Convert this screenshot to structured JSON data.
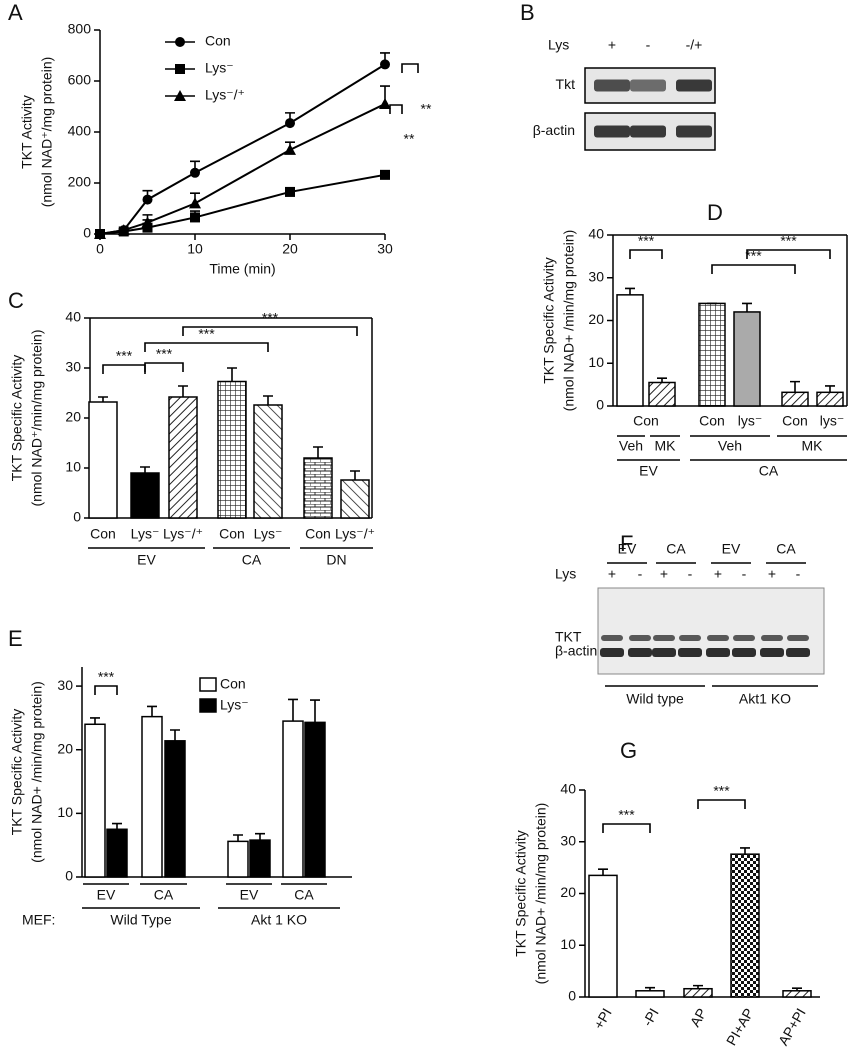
{
  "chart_data": [
    {
      "panel": "A",
      "type": "line",
      "y_label": [
        "TKT Activity",
        "(nmol NAD⁺/mg protein)"
      ],
      "x_label": "Time (min)",
      "x": [
        0,
        2.5,
        5,
        10,
        20,
        30
      ],
      "xlim": [
        0,
        30
      ],
      "xticks": [
        0,
        10,
        20,
        30
      ],
      "ylim": [
        0,
        800
      ],
      "yticks": [
        0,
        200,
        400,
        600,
        800
      ],
      "series": [
        {
          "name": "Con",
          "color": "#000",
          "marker": "circle",
          "values": [
            0,
            15,
            135,
            240,
            435,
            665
          ],
          "errors": [
            0,
            5,
            35,
            45,
            40,
            45
          ]
        },
        {
          "name": "Lys⁻",
          "color": "#000",
          "marker": "square",
          "values": [
            0,
            10,
            25,
            65,
            165,
            232
          ],
          "errors": [
            0,
            5,
            30,
            25,
            10,
            10
          ]
        },
        {
          "name": "Lys⁻/⁺",
          "color": "#000",
          "marker": "triangle",
          "values": [
            0,
            15,
            45,
            120,
            330,
            510
          ],
          "errors": [
            0,
            5,
            30,
            40,
            30,
            70
          ]
        }
      ],
      "annotations": [
        "**",
        "**"
      ]
    },
    {
      "panel": "C",
      "type": "bar",
      "frame": true,
      "y_label": [
        "TKT Specific Activity",
        "(nmol NAD⁺/min/mg protein)"
      ],
      "categories": [
        "Con",
        "Lys⁻",
        "Lys⁻/⁺",
        "Con",
        "Lys⁻",
        "Con",
        "Lys⁻/⁺"
      ],
      "values": [
        23.2,
        9,
        24.2,
        27.3,
        22.6,
        12,
        7.6
      ],
      "errors": [
        1,
        1.2,
        2.2,
        2.7,
        1.8,
        2.2,
        1.8
      ],
      "colors": [
        "white",
        "black",
        "hatch",
        "grid",
        "backhatch",
        "brick",
        "backhatch"
      ],
      "groups": [
        "EV",
        "CA",
        "DN"
      ],
      "ylim": [
        0,
        40
      ],
      "yticks": [
        0,
        10,
        20,
        30,
        40
      ],
      "annotations": [
        "***",
        "***",
        "***",
        "***"
      ]
    },
    {
      "panel": "D",
      "type": "bar",
      "frame": true,
      "y_label": [
        "TKT Specific Activity",
        "(nmol NAD+ /min/mg protein)"
      ],
      "values": [
        26,
        5.5,
        24,
        22,
        3.2,
        3.2
      ],
      "errors": [
        1.5,
        1,
        0,
        2,
        2.5,
        1.5
      ],
      "colors": [
        "white",
        "hatch",
        "grid",
        "gray",
        "hatch",
        "hatch"
      ],
      "label_rows": [
        [
          "Con",
          "Con",
          "lys⁻",
          "Con",
          "lys⁻"
        ],
        [
          "Veh",
          "MK",
          "Veh",
          "MK"
        ],
        [
          "EV",
          "CA"
        ]
      ],
      "ylim": [
        0,
        40
      ],
      "yticks": [
        0,
        10,
        20,
        30,
        40
      ],
      "annotations": [
        "***",
        "***",
        "***"
      ]
    },
    {
      "panel": "E",
      "type": "grouped_bar",
      "y_label": [
        "TKT Specific Activity",
        "(nmol NAD+ /min/mg protein)"
      ],
      "categories": [
        "EV",
        "CA",
        "EV",
        "CA"
      ],
      "groups": [
        "Wild Type",
        "Akt 1 KO"
      ],
      "group_prefix": "MEF:",
      "series": [
        {
          "name": "Con",
          "color": "white",
          "values": [
            24,
            25.2,
            5.6,
            24.5
          ],
          "errors": [
            1,
            1.6,
            1,
            3.4
          ]
        },
        {
          "name": "Lys⁻",
          "color": "black",
          "values": [
            7.5,
            21.4,
            5.8,
            24.3
          ],
          "errors": [
            0.9,
            1.7,
            1,
            3.5
          ]
        }
      ],
      "ylim": [
        0,
        33
      ],
      "yticks": [
        0,
        10,
        20,
        30
      ],
      "annotations": [
        "***"
      ]
    },
    {
      "panel": "G",
      "type": "bar",
      "y_label": [
        "TKT Specific Activity",
        "(nmol NAD+ /min/mg protein)"
      ],
      "categories": [
        "+PI",
        "-PI",
        "AP",
        "PI+AP",
        "AP+PI"
      ],
      "values": [
        23.5,
        1.2,
        1.6,
        27.6,
        1.2
      ],
      "errors": [
        1.2,
        0.6,
        0.6,
        1.2,
        0.5
      ],
      "colors": [
        "white",
        "white",
        "hatch",
        "check",
        "hatch"
      ],
      "ylim": [
        0,
        40
      ],
      "yticks": [
        0,
        10,
        20,
        30,
        40
      ],
      "annotations": [
        "***",
        "***"
      ]
    }
  ],
  "blots": [
    {
      "panel": "B",
      "row_header": "Lys",
      "lanes": [
        "+",
        "-",
        "-/+"
      ],
      "rows": [
        "Tkt",
        "β-actin"
      ]
    },
    {
      "panel": "F",
      "groups": [
        "EV",
        "CA",
        "EV",
        "CA"
      ],
      "row_header": "Lys",
      "lanes": [
        "+",
        "-",
        "+",
        "-",
        "+",
        "-",
        "+",
        "-"
      ],
      "rows": [
        "TKT",
        "β-actin"
      ],
      "genotypes": [
        "Wild type",
        "Akt1 KO"
      ]
    }
  ]
}
